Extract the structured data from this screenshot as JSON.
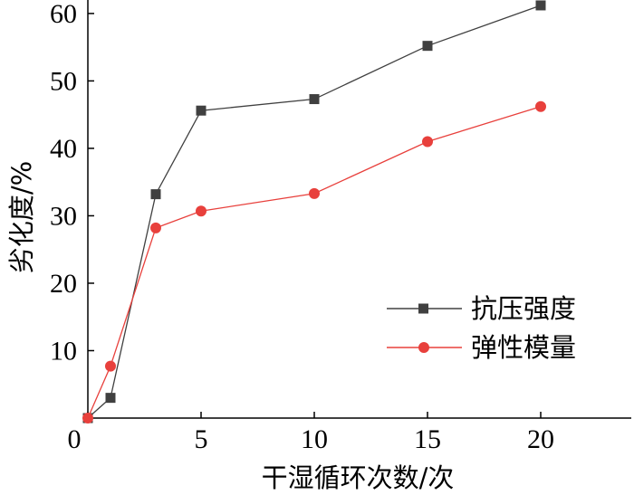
{
  "chart_data": {
    "type": "line",
    "title": "",
    "xlabel": "干湿循环次数/次",
    "ylabel": "劣化度/%",
    "xlim": [
      0,
      24
    ],
    "ylim": [
      0,
      62
    ],
    "xticks": [
      0,
      5,
      10,
      15,
      20
    ],
    "yticks": [
      10,
      20,
      30,
      40,
      50,
      60
    ],
    "legend_position": "bottom-right",
    "grid": false,
    "series": [
      {
        "name": "抗压强度",
        "color": "#404040",
        "marker": "square",
        "x": [
          0,
          1,
          3,
          5,
          10,
          15,
          20
        ],
        "y": [
          0,
          3.0,
          33.2,
          45.6,
          47.3,
          55.2,
          61.2
        ]
      },
      {
        "name": "弹性模量",
        "color": "#e8403c",
        "marker": "circle",
        "x": [
          0,
          1,
          3,
          5,
          10,
          15,
          20
        ],
        "y": [
          0,
          7.7,
          28.2,
          30.7,
          33.3,
          41.0,
          46.2
        ]
      }
    ]
  }
}
